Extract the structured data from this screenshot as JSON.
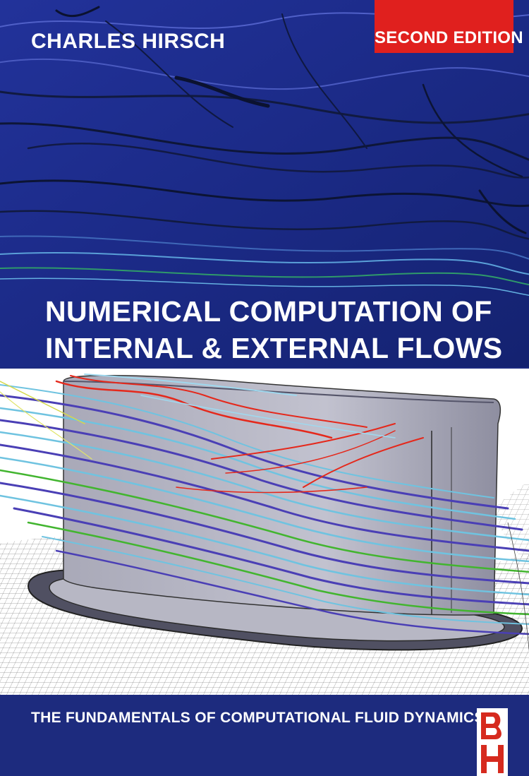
{
  "author": "CHARLES HIRSCH",
  "edition": "SECOND EDITION",
  "title_line_1": "NUMERICAL COMPUTATION OF",
  "title_line_2": "INTERNAL & EXTERNAL FLOWS",
  "subtitle": "THE FUNDAMENTALS OF COMPUTATIONAL FLUID DYNAMICS",
  "publisher_logo": {
    "letter_top": "B",
    "letter_bottom": "H",
    "icon": "butterworth-heinemann-logo"
  },
  "colors": {
    "background_navy": "#1c2a80",
    "edition_red": "#e0201e",
    "logo_red": "#d62a1e",
    "streamline_red": "#e5281b",
    "streamline_blue": "#4a3fb5",
    "streamline_cyan": "#6fc3e0",
    "streamline_green": "#42b52f",
    "blade_gray": "#b9b9c6"
  }
}
